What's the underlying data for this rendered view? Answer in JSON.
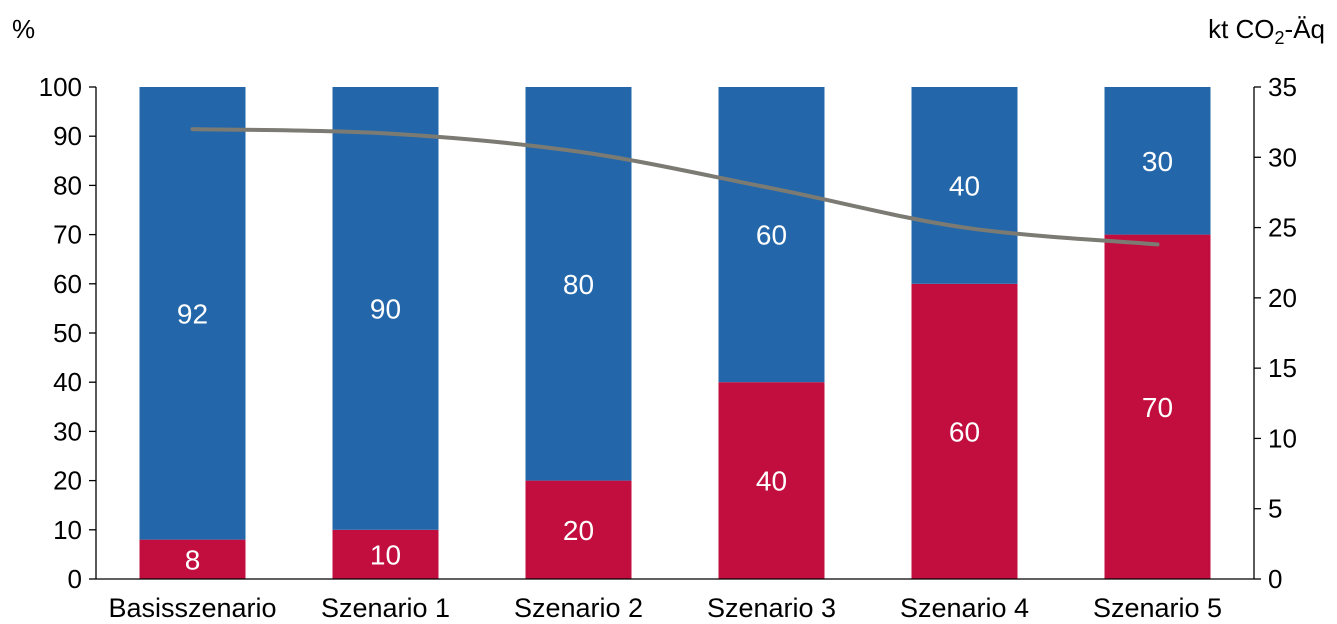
{
  "chart_data": {
    "type": "bar",
    "stacked": true,
    "categories": [
      "Basisszenario",
      "Szenario 1",
      "Szenario 2",
      "Szenario 3",
      "Szenario 4",
      "Szenario 5"
    ],
    "series": [
      {
        "values": [
          8,
          10,
          20,
          40,
          60,
          70
        ],
        "color": "#c20e3e",
        "axis": "left",
        "kind": "bar"
      },
      {
        "values": [
          92,
          90,
          80,
          60,
          40,
          30
        ],
        "color": "#2367aa",
        "axis": "left",
        "kind": "bar"
      },
      {
        "values": [
          32,
          31.7,
          30.4,
          27.8,
          25.0,
          23.8
        ],
        "color": "#7b7b74",
        "axis": "right",
        "kind": "line"
      }
    ],
    "y_left": {
      "unit_label": "%",
      "min": 0,
      "max": 100,
      "ticks": [
        "0",
        "10",
        "20",
        "30",
        "40",
        "50",
        "60",
        "70",
        "80",
        "90",
        "100"
      ]
    },
    "y_right": {
      "unit_label_base": "kt CO",
      "unit_label_sub": "2",
      "unit_label_rest": "-Äq",
      "min": 0,
      "max": 35,
      "ticks": [
        "0",
        "5",
        "10",
        "15",
        "20",
        "25",
        "30",
        "35"
      ]
    },
    "data_labels": true,
    "grid": false,
    "legend": "none"
  }
}
